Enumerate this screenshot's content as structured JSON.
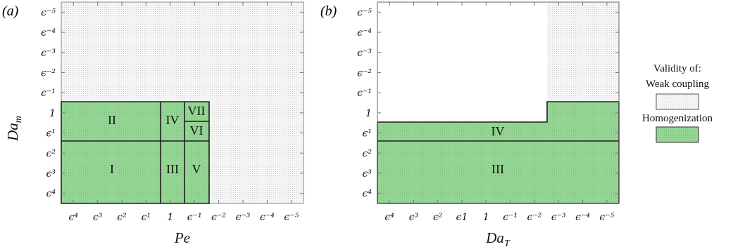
{
  "panels": [
    {
      "label": "(a)",
      "xlabel": "Pe",
      "ylabel": "Da",
      "ylabel_sub": "m",
      "xticks": [
        "ϵ⁴",
        "ϵ³",
        "ϵ²",
        "ϵ¹",
        "1",
        "ϵ⁻¹",
        "ϵ⁻²",
        "ϵ⁻³",
        "ϵ⁻⁴",
        "ϵ⁻⁵"
      ],
      "yticks": [
        "ϵ⁻⁵",
        "ϵ⁻⁴",
        "ϵ⁻³",
        "ϵ⁻²",
        "ϵ⁻¹",
        "1",
        "ϵ¹",
        "ϵ²",
        "ϵ³",
        "ϵ⁴"
      ],
      "regions": [
        {
          "label": "II",
          "x_from": "ϵ⁴",
          "x_to": "ϵ¹",
          "y_from": "ϵ²",
          "y_to": "1"
        },
        {
          "label": "I",
          "x_from": "ϵ⁴",
          "x_to": "ϵ¹",
          "y_from": "ϵ⁴",
          "y_to": "ϵ²"
        },
        {
          "label": "IV",
          "x_from": "1",
          "x_to": "1",
          "y_from": "ϵ²",
          "y_to": "1"
        },
        {
          "label": "III",
          "x_from": "1",
          "x_to": "1",
          "y_from": "ϵ⁴",
          "y_to": "ϵ²"
        },
        {
          "label": "VII",
          "x_from": "ϵ⁻¹",
          "x_to": "ϵ⁻¹",
          "y_from": "1",
          "y_to": "1"
        },
        {
          "label": "VI",
          "x_from": "ϵ⁻¹",
          "x_to": "ϵ⁻¹",
          "y_from": "ϵ¹",
          "y_to": "ϵ¹"
        },
        {
          "label": "V",
          "x_from": "ϵ⁻¹",
          "x_to": "ϵ⁻¹",
          "y_from": "ϵ⁴",
          "y_to": "ϵ²"
        }
      ]
    },
    {
      "label": "(b)",
      "xlabel": "Da",
      "xlabel_sub": "T",
      "xticks": [
        "ϵ⁴",
        "ϵ³",
        "ϵ²",
        "ϵ1",
        "1",
        "ϵ⁻¹",
        "ϵ⁻²",
        "ϵ⁻³",
        "ϵ⁻⁴",
        "ϵ⁻⁵"
      ],
      "yticks": [
        "ϵ⁻⁵",
        "ϵ⁻⁴",
        "ϵ⁻³",
        "ϵ⁻²",
        "ϵ⁻¹",
        "1",
        "ϵ¹",
        "ϵ²",
        "ϵ³",
        "ϵ⁴"
      ],
      "regions": [
        {
          "label": "IV",
          "y_from": "ϵ¹",
          "y_to": "ϵ¹"
        },
        {
          "label": "III",
          "y_from": "ϵ⁴",
          "y_to": "ϵ²"
        }
      ]
    }
  ],
  "legend": {
    "title": "Validity of:",
    "items": [
      {
        "label": "Weak coupling",
        "color": "#f3f3f3"
      },
      {
        "label": "Homogenization",
        "color": "#93d593"
      }
    ]
  },
  "colors": {
    "green": "#93d593",
    "weak": "#f3f3f3",
    "frame": "#888888",
    "region_line": "#1e1e1e"
  }
}
